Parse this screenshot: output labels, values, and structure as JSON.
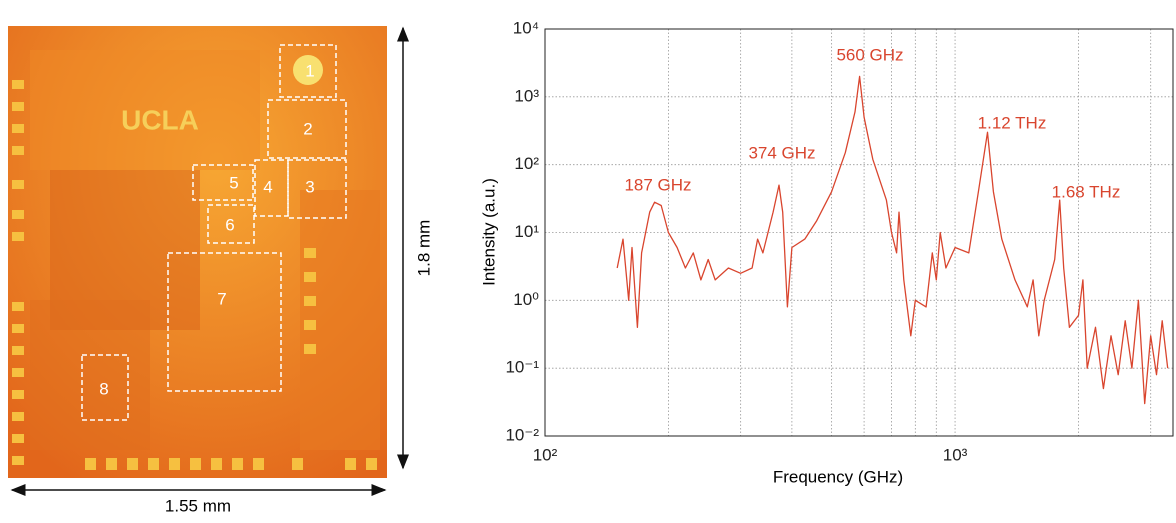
{
  "image": {
    "labels": [
      "1",
      "2",
      "3",
      "4",
      "5",
      "6",
      "7",
      "8"
    ],
    "logo": "UCLA",
    "width_label": "1.55 mm",
    "height_label": "1.8 mm"
  },
  "chart_data": {
    "type": "line",
    "xlabel": "Frequency (GHz)",
    "ylabel": "Intensity (a.u.)",
    "xscale": "log",
    "yscale": "log",
    "grid": true,
    "color": "#d9452e",
    "annotations": [
      "187 GHz",
      "374 GHz",
      "560 GHz",
      "1.12 THz",
      "1.68 THz"
    ],
    "xlim": [
      100,
      3400
    ],
    "ylim": [
      0.01,
      10000
    ],
    "xticks": [
      {
        "value": 100,
        "label": "10²"
      },
      {
        "value": 1000,
        "label": "10³"
      }
    ],
    "yticks": [
      {
        "value": 0.01,
        "label": "10⁻²"
      },
      {
        "value": 0.1,
        "label": "10⁻¹"
      },
      {
        "value": 1,
        "label": "10⁰"
      },
      {
        "value": 10,
        "label": "10¹"
      },
      {
        "value": 100,
        "label": "10²"
      },
      {
        "value": 1000,
        "label": "10³"
      },
      {
        "value": 10000,
        "label": "10⁴"
      }
    ],
    "x": [
      150,
      155,
      160,
      163,
      168,
      172,
      180,
      185,
      192,
      200,
      210,
      220,
      230,
      240,
      250,
      260,
      280,
      300,
      320,
      330,
      340,
      360,
      372,
      380,
      390,
      400,
      430,
      460,
      500,
      540,
      570,
      585,
      600,
      630,
      680,
      700,
      720,
      730,
      750,
      780,
      800,
      850,
      880,
      900,
      920,
      950,
      1000,
      1080,
      1140,
      1200,
      1240,
      1300,
      1400,
      1500,
      1550,
      1600,
      1650,
      1750,
      1800,
      1840,
      1900,
      2000,
      2050,
      2100,
      2200,
      2300,
      2400,
      2500,
      2600,
      2700,
      2800,
      2900,
      3000,
      3100,
      3200,
      3300
    ],
    "values": [
      3,
      8,
      1,
      6,
      0.4,
      5,
      20,
      28,
      25,
      10,
      6,
      3,
      5,
      2,
      4,
      2,
      3,
      2.5,
      3,
      8,
      5,
      20,
      50,
      20,
      0.8,
      6,
      8,
      15,
      40,
      150,
      600,
      2000,
      500,
      120,
      30,
      10,
      5,
      20,
      2,
      0.3,
      1,
      0.8,
      5,
      2,
      10,
      3,
      6,
      5,
      40,
      300,
      40,
      8,
      2,
      0.8,
      2,
      0.3,
      1,
      4,
      30,
      3,
      0.4,
      0.6,
      2,
      0.1,
      0.4,
      0.05,
      0.3,
      0.08,
      0.5,
      0.1,
      1,
      0.03,
      0.3,
      0.08,
      0.5,
      0.1
    ]
  }
}
